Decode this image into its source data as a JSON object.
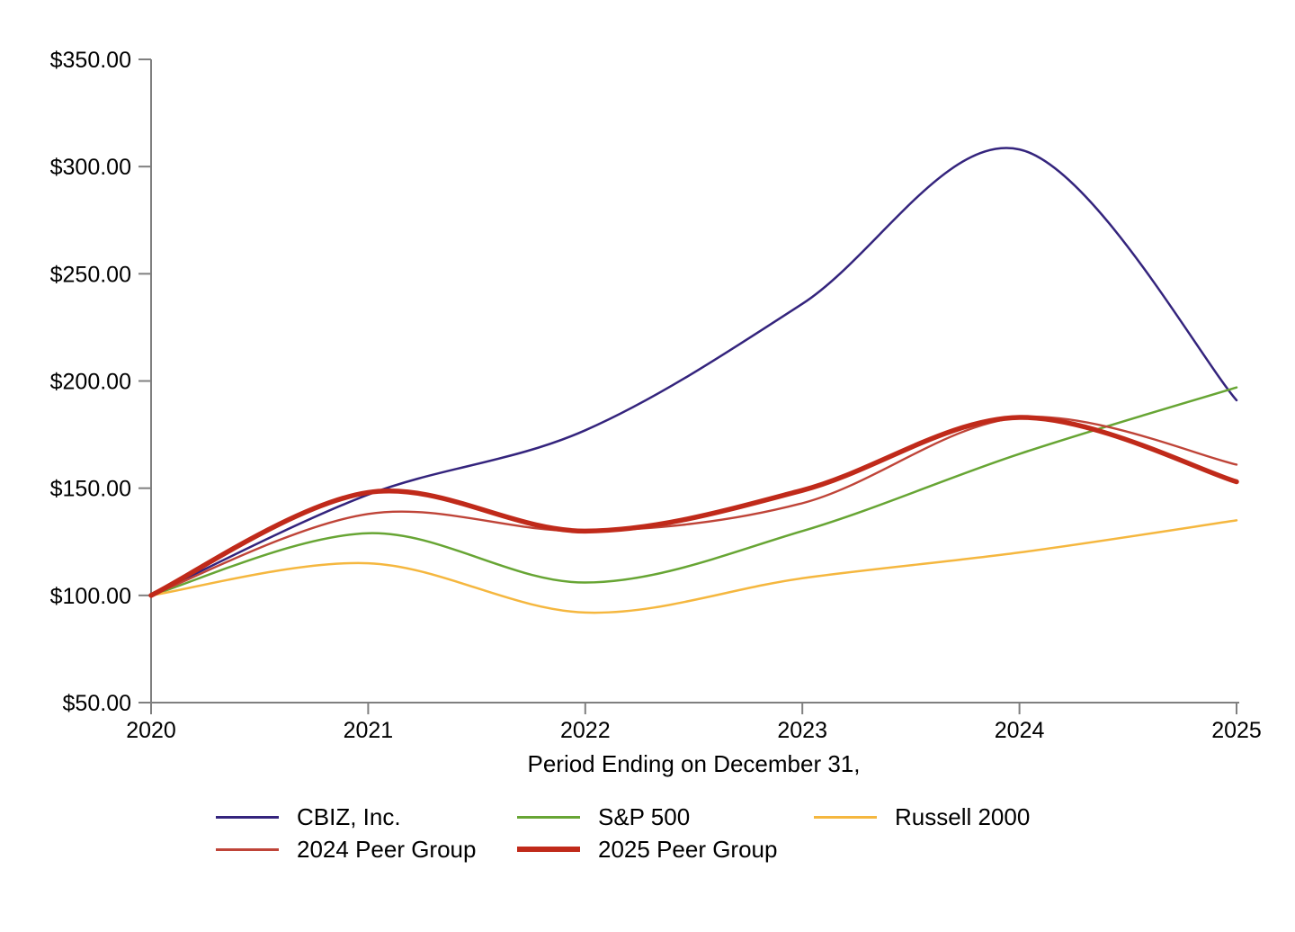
{
  "page": {
    "background_color": "#ffffff",
    "text_color": "#000000"
  },
  "chart_data": {
    "type": "line",
    "title": "",
    "xlabel": "Period Ending on December 31,",
    "ylabel": "",
    "line_style": "smooth",
    "grid": false,
    "legend_position": "bottom",
    "axis_color": "#7f7f7f",
    "x_categories": [
      "2020",
      "2021",
      "2022",
      "2023",
      "2024",
      "2025"
    ],
    "y_axis": {
      "min": 50,
      "max": 350,
      "step": 50,
      "tick_values": [
        50,
        100,
        150,
        200,
        250,
        300,
        350
      ],
      "tick_labels": [
        "$50.00",
        "$100.00",
        "$150.00",
        "$200.00",
        "$250.00",
        "$300.00",
        "$350.00"
      ]
    },
    "series": [
      {
        "id": "cbiz",
        "name": "CBIZ, Inc.",
        "color": "#34247d",
        "stroke_width": 2.5,
        "values": [
          100,
          147,
          177,
          236,
          308,
          191
        ]
      },
      {
        "id": "sp500",
        "name": "S&P 500",
        "color": "#67a534",
        "stroke_width": 2.5,
        "values": [
          100,
          129,
          106,
          130,
          166,
          197
        ]
      },
      {
        "id": "russell-2000",
        "name": "Russell 2000",
        "color": "#f5b73f",
        "stroke_width": 2.5,
        "values": [
          100,
          115,
          92,
          108,
          120,
          135
        ]
      },
      {
        "id": "peer-group-2024",
        "name": "2024 Peer Group",
        "color": "#bf4438",
        "stroke_width": 2.4,
        "values": [
          100,
          138,
          130,
          143,
          183,
          161
        ]
      },
      {
        "id": "peer-group-2025",
        "name": "2025 Peer Group",
        "color": "#c02a1a",
        "stroke_width": 5.5,
        "values": [
          100,
          148,
          130,
          149,
          183,
          153
        ]
      }
    ]
  }
}
